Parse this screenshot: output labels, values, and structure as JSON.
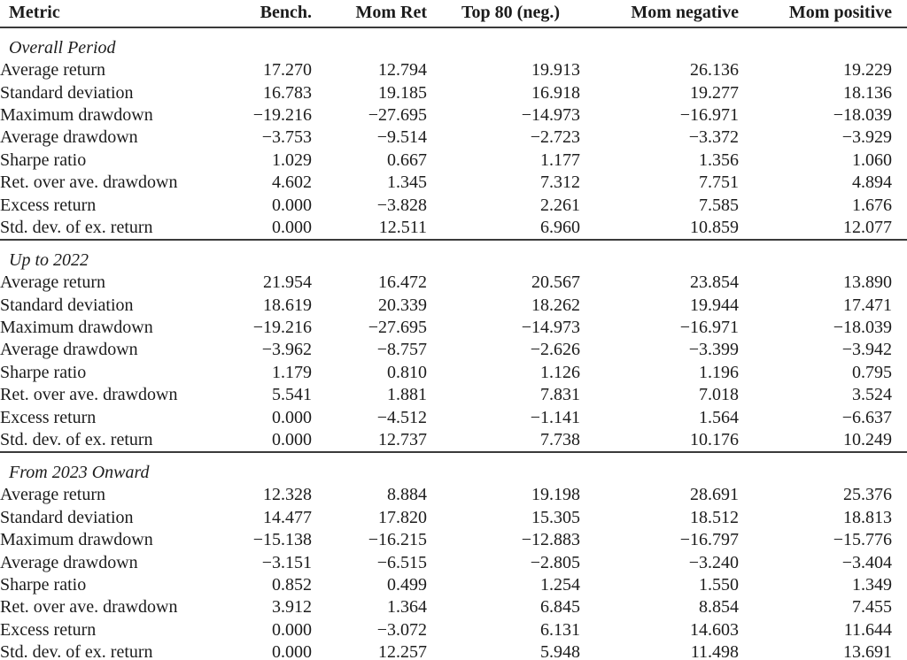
{
  "columns": [
    "Metric",
    "Bench.",
    "Mom Ret",
    "Top 80 (neg.)",
    "Mom negative",
    "Mom positive"
  ],
  "sections": [
    {
      "title": "Overall Period",
      "rows": [
        {
          "metric": "Average return",
          "values": [
            "17.270",
            "12.794",
            "19.913",
            "26.136",
            "19.229"
          ]
        },
        {
          "metric": "Standard deviation",
          "values": [
            "16.783",
            "19.185",
            "16.918",
            "19.277",
            "18.136"
          ]
        },
        {
          "metric": "Maximum drawdown",
          "values": [
            "−19.216",
            "−27.695",
            "−14.973",
            "−16.971",
            "−18.039"
          ]
        },
        {
          "metric": "Average drawdown",
          "values": [
            "−3.753",
            "−9.514",
            "−2.723",
            "−3.372",
            "−3.929"
          ]
        },
        {
          "metric": "Sharpe ratio",
          "values": [
            "1.029",
            "0.667",
            "1.177",
            "1.356",
            "1.060"
          ]
        },
        {
          "metric": "Ret. over ave. drawdown",
          "values": [
            "4.602",
            "1.345",
            "7.312",
            "7.751",
            "4.894"
          ]
        },
        {
          "metric": "Excess return",
          "values": [
            "0.000",
            "−3.828",
            "2.261",
            "7.585",
            "1.676"
          ]
        },
        {
          "metric": "Std. dev. of ex. return",
          "values": [
            "0.000",
            "12.511",
            "6.960",
            "10.859",
            "12.077"
          ]
        }
      ]
    },
    {
      "title": "Up to 2022",
      "rows": [
        {
          "metric": "Average return",
          "values": [
            "21.954",
            "16.472",
            "20.567",
            "23.854",
            "13.890"
          ]
        },
        {
          "metric": "Standard deviation",
          "values": [
            "18.619",
            "20.339",
            "18.262",
            "19.944",
            "17.471"
          ]
        },
        {
          "metric": "Maximum drawdown",
          "values": [
            "−19.216",
            "−27.695",
            "−14.973",
            "−16.971",
            "−18.039"
          ]
        },
        {
          "metric": "Average drawdown",
          "values": [
            "−3.962",
            "−8.757",
            "−2.626",
            "−3.399",
            "−3.942"
          ]
        },
        {
          "metric": "Sharpe ratio",
          "values": [
            "1.179",
            "0.810",
            "1.126",
            "1.196",
            "0.795"
          ]
        },
        {
          "metric": "Ret. over ave. drawdown",
          "values": [
            "5.541",
            "1.881",
            "7.831",
            "7.018",
            "3.524"
          ]
        },
        {
          "metric": "Excess return",
          "values": [
            "0.000",
            "−4.512",
            "−1.141",
            "1.564",
            "−6.637"
          ]
        },
        {
          "metric": "Std. dev. of ex. return",
          "values": [
            "0.000",
            "12.737",
            "7.738",
            "10.176",
            "10.249"
          ]
        }
      ]
    },
    {
      "title": "From 2023 Onward",
      "rows": [
        {
          "metric": "Average return",
          "values": [
            "12.328",
            "8.884",
            "19.198",
            "28.691",
            "25.376"
          ]
        },
        {
          "metric": "Standard deviation",
          "values": [
            "14.477",
            "17.820",
            "15.305",
            "18.512",
            "18.813"
          ]
        },
        {
          "metric": "Maximum drawdown",
          "values": [
            "−15.138",
            "−16.215",
            "−12.883",
            "−16.797",
            "−15.776"
          ]
        },
        {
          "metric": "Average drawdown",
          "values": [
            "−3.151",
            "−6.515",
            "−2.805",
            "−3.240",
            "−3.404"
          ]
        },
        {
          "metric": "Sharpe ratio",
          "values": [
            "0.852",
            "0.499",
            "1.254",
            "1.550",
            "1.349"
          ]
        },
        {
          "metric": "Ret. over ave. drawdown",
          "values": [
            "3.912",
            "1.364",
            "6.845",
            "8.854",
            "7.455"
          ]
        },
        {
          "metric": "Excess return",
          "values": [
            "0.000",
            "−3.072",
            "6.131",
            "14.603",
            "11.644"
          ]
        },
        {
          "metric": "Std. dev. of ex. return",
          "values": [
            "0.000",
            "12.257",
            "5.948",
            "11.498",
            "13.691"
          ]
        }
      ]
    }
  ],
  "colors": {
    "text": "#1c1c1c",
    "rule": "#3a3a3a",
    "background": "#ffffff"
  }
}
